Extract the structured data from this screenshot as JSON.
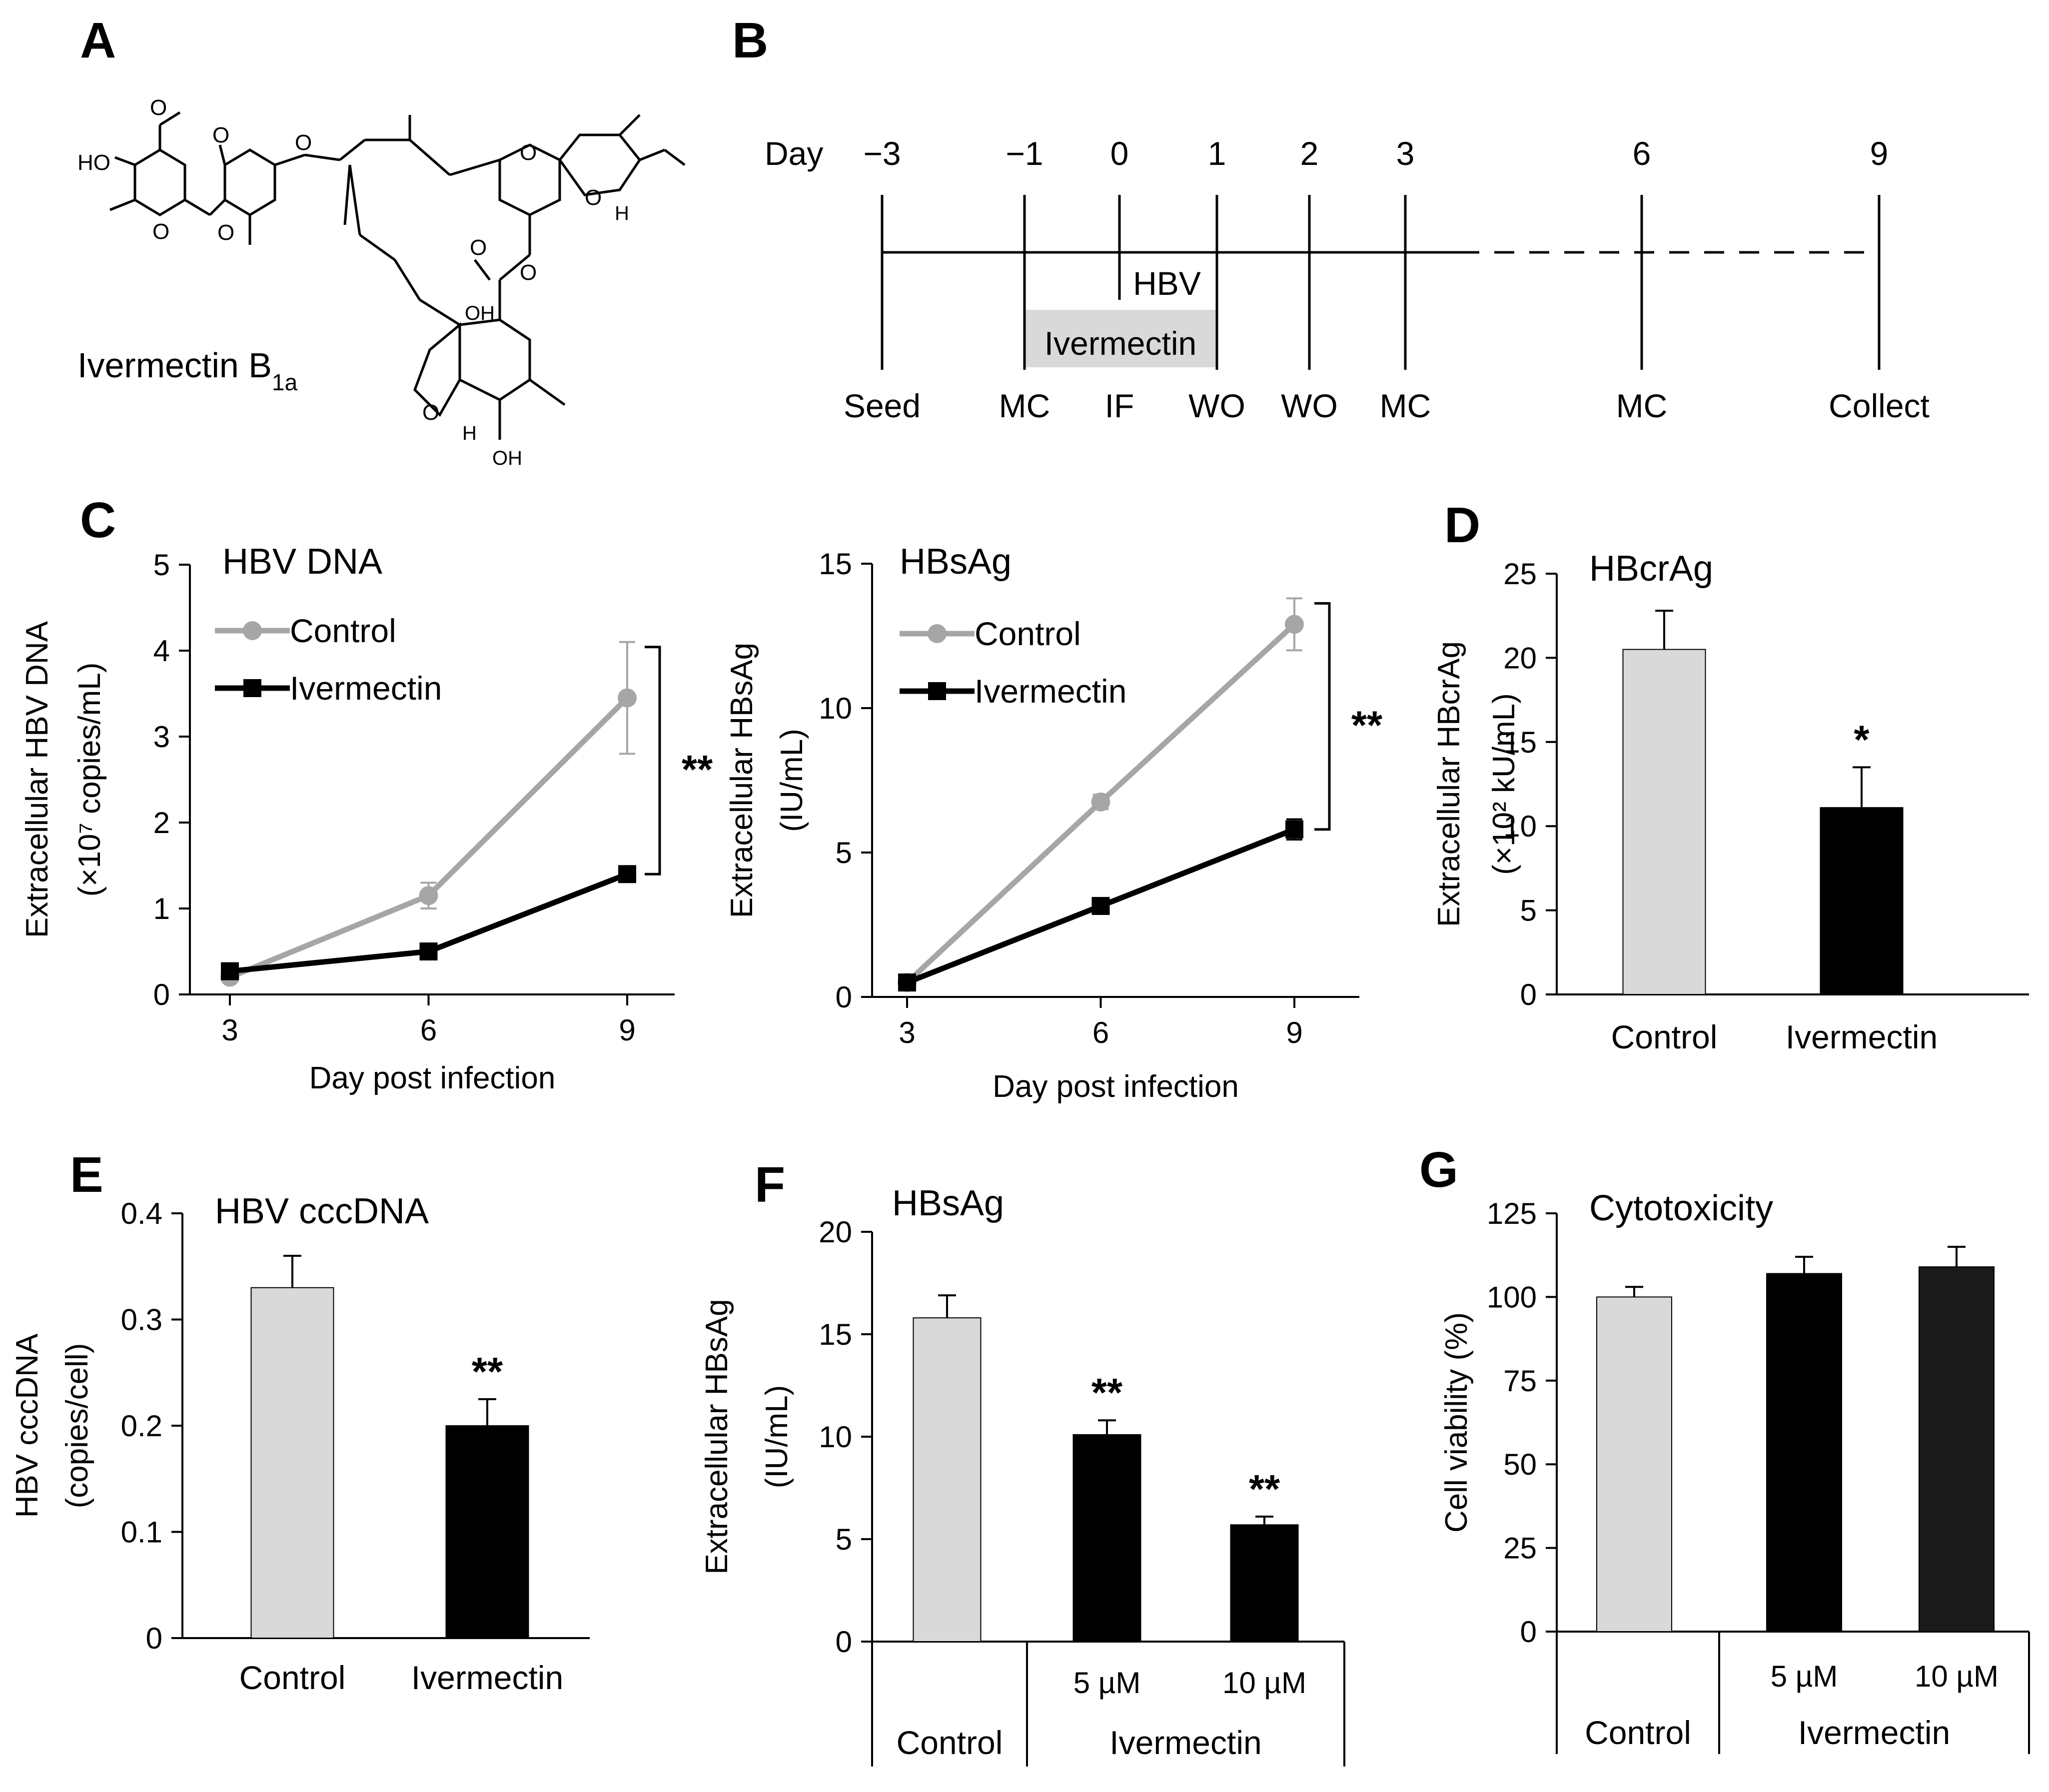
{
  "panels": {
    "A": {
      "label": "A",
      "compound_base": "Ivermectin B",
      "compound_sub": "1a"
    },
    "B": {
      "label": "B",
      "day_prefix": "Day",
      "days": [
        "−3",
        "−1",
        "0",
        "1",
        "2",
        "3",
        "6",
        "9"
      ],
      "events": [
        "Seed",
        "MC",
        "IF",
        "WO",
        "WO",
        "MC",
        "MC",
        "Collect"
      ],
      "hbv_label": "HBV",
      "ivermectin_label": "Ivermectin"
    },
    "C": {
      "label": "C"
    },
    "D": {
      "label": "D"
    },
    "E": {
      "label": "E"
    },
    "F": {
      "label": "F"
    },
    "G": {
      "label": "G"
    }
  },
  "chart_data": [
    {
      "id": "c1",
      "type": "line",
      "title": "HBV DNA",
      "xlabel": "Day post infection",
      "ylabel_line1": "Extracellular HBV DNA",
      "ylabel_line2": "(×10⁷ copies/mL)",
      "x": [
        3,
        6,
        9
      ],
      "ylim": [
        0,
        5
      ],
      "yticks": [
        0,
        1,
        2,
        3,
        4,
        5
      ],
      "series": [
        {
          "name": "Control",
          "color": "#a6a6a6",
          "marker": "circle",
          "values": [
            0.2,
            1.15,
            3.45
          ],
          "errors": [
            0.05,
            0.15,
            0.65
          ]
        },
        {
          "name": "Ivermectin",
          "color": "#000000",
          "marker": "square",
          "values": [
            0.27,
            0.5,
            1.4
          ],
          "errors": [
            0.03,
            0.05,
            0.05
          ]
        }
      ],
      "significance": "**",
      "legend_position": "top-left"
    },
    {
      "id": "c2",
      "type": "line",
      "title": "HBsAg",
      "xlabel": "Day post infection",
      "ylabel_line1": "Extracellular HBsAg",
      "ylabel_line2": "(IU/mL)",
      "x": [
        3,
        6,
        9
      ],
      "ylim": [
        0,
        15
      ],
      "yticks": [
        0,
        5,
        10,
        15
      ],
      "series": [
        {
          "name": "Control",
          "color": "#a6a6a6",
          "marker": "circle",
          "values": [
            0.5,
            6.75,
            12.9
          ],
          "errors": [
            0.05,
            0.25,
            0.9
          ]
        },
        {
          "name": "Ivermectin",
          "color": "#000000",
          "marker": "square",
          "values": [
            0.5,
            3.15,
            5.8
          ],
          "errors": [
            0.05,
            0.15,
            0.35
          ]
        }
      ],
      "significance": "**",
      "legend_position": "top-left"
    },
    {
      "id": "d",
      "type": "bar",
      "title": "HBcrAg",
      "ylabel_line1": "Extracellular HBcrAg",
      "ylabel_line2": "(×10² kU/mL)",
      "categories": [
        "Control",
        "Ivermectin"
      ],
      "values": [
        20.5,
        11.1
      ],
      "errors": [
        2.3,
        2.4
      ],
      "colors": [
        "#d9d9d9",
        "#000000"
      ],
      "stars": [
        "",
        "*"
      ],
      "ylim": [
        0,
        25
      ],
      "yticks": [
        0,
        5,
        10,
        15,
        20,
        25
      ]
    },
    {
      "id": "e",
      "type": "bar",
      "title": "HBV cccDNA",
      "ylabel_line1": "HBV cccDNA",
      "ylabel_line2": "(copies/cell)",
      "categories": [
        "Control",
        "Ivermectin"
      ],
      "values": [
        0.33,
        0.2
      ],
      "errors": [
        0.03,
        0.025
      ],
      "colors": [
        "#d9d9d9",
        "#000000"
      ],
      "stars": [
        "",
        "**"
      ],
      "ylim": [
        0,
        0.4
      ],
      "yticks": [
        0,
        0.1,
        0.2,
        0.3,
        0.4
      ]
    },
    {
      "id": "f",
      "type": "bar",
      "title": "HBsAg",
      "ylabel_line1": "Extracellular HBsAg",
      "ylabel_line2": "(IU/mL)",
      "categories": [
        "Control",
        "5 µM",
        "10 µM"
      ],
      "group_labels": [
        "Control",
        "Ivermectin"
      ],
      "values": [
        15.8,
        10.1,
        5.7
      ],
      "errors": [
        1.1,
        0.7,
        0.4
      ],
      "colors": [
        "#d9d9d9",
        "#000000",
        "#000000"
      ],
      "stars": [
        "",
        "**",
        "**"
      ],
      "ylim": [
        0,
        20
      ],
      "yticks": [
        0,
        5,
        10,
        15,
        20
      ]
    },
    {
      "id": "g",
      "type": "bar",
      "title": "Cytotoxicity",
      "ylabel_line1": "Cell viability (%)",
      "categories": [
        "Control",
        "5 µM",
        "10 µM"
      ],
      "group_labels": [
        "Control",
        "Ivermectin"
      ],
      "values": [
        100,
        107,
        109
      ],
      "errors": [
        3,
        5,
        6
      ],
      "colors": [
        "#d9d9d9",
        "#000000",
        "#1a1a1a"
      ],
      "stars": [
        "",
        "",
        ""
      ],
      "ylim": [
        0,
        125
      ],
      "yticks": [
        0,
        25,
        50,
        75,
        100,
        125
      ]
    }
  ]
}
